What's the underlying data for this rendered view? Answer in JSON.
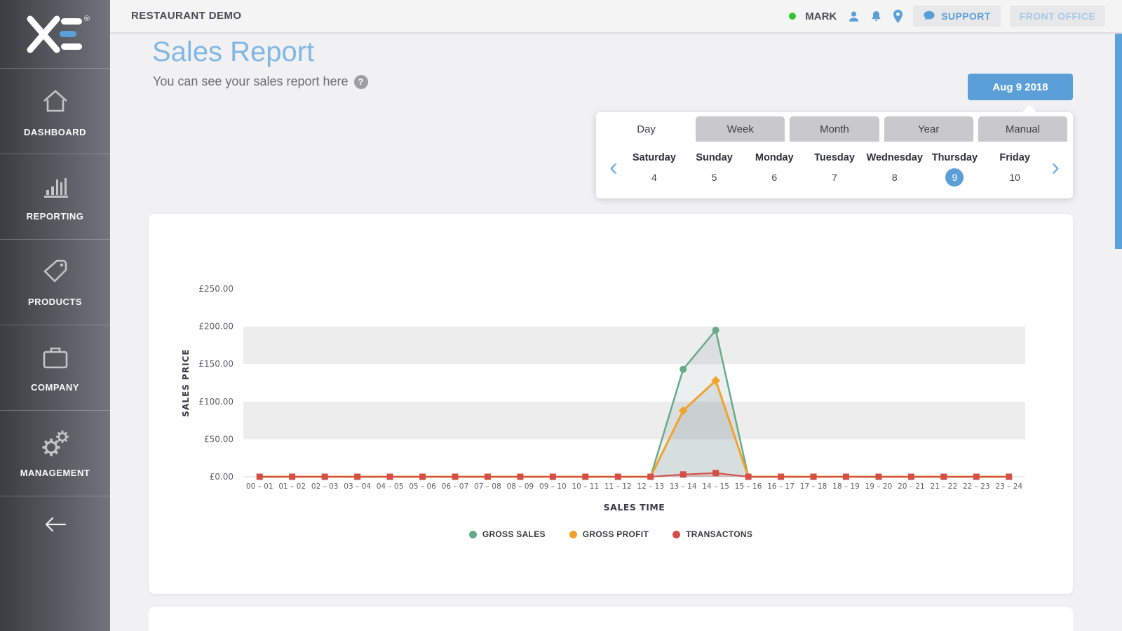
{
  "theme": {
    "accent_blue": "#5b9fd8",
    "title_blue": "#82b7e3",
    "muted_blue": "#a9c9e6",
    "status_green": "#2ec52e",
    "tab_gray": "#c9c9cb",
    "band_gray": "#ededee"
  },
  "sidebar": {
    "brand": "XE",
    "registered_mark": "®",
    "items": [
      {
        "label": "DASHBOARD",
        "icon": "home-icon"
      },
      {
        "label": "REPORTING",
        "icon": "bar-chart-icon"
      },
      {
        "label": "PRODUCTS",
        "icon": "tag-icon"
      },
      {
        "label": "COMPANY",
        "icon": "briefcase-icon"
      },
      {
        "label": "MANAGEMENT",
        "icon": "gears-icon"
      }
    ]
  },
  "topbar": {
    "brand": "RESTAURANT DEMO",
    "user_name": "MARK",
    "support_label": "SUPPORT",
    "front_office_label": "FRONT OFFICE"
  },
  "page": {
    "title": "Sales Report",
    "subtitle": "You can see your sales report here",
    "help_glyph": "?"
  },
  "date_picker": {
    "selected_date_label": "Aug 9 2018",
    "prev_glyph": "‹",
    "next_glyph": "›",
    "tabs": [
      {
        "label": "Day",
        "active": true
      },
      {
        "label": "Week",
        "active": false
      },
      {
        "label": "Month",
        "active": false
      },
      {
        "label": "Year",
        "active": false
      },
      {
        "label": "Manual",
        "active": false
      }
    ],
    "days": [
      {
        "name": "Saturday",
        "num": "4",
        "selected": false
      },
      {
        "name": "Sunday",
        "num": "5",
        "selected": false
      },
      {
        "name": "Monday",
        "num": "6",
        "selected": false
      },
      {
        "name": "Tuesday",
        "num": "7",
        "selected": false
      },
      {
        "name": "Wednesday",
        "num": "8",
        "selected": false
      },
      {
        "name": "Thursday",
        "num": "9",
        "selected": true
      },
      {
        "name": "Friday",
        "num": "10",
        "selected": false
      }
    ]
  },
  "chart_data": {
    "type": "area",
    "title": "",
    "xlabel": "SALES TIME",
    "ylabel": "SALES PRICE",
    "ylim": [
      0,
      250
    ],
    "ytick_step": 50,
    "ytick_labels": [
      "£0.00",
      "£50.00",
      "£100.00",
      "£150.00",
      "£200.00",
      "£250.00"
    ],
    "grid_bands": [
      [
        50,
        100
      ],
      [
        150,
        200
      ]
    ],
    "legend_position": "bottom",
    "categories": [
      "00 – 01",
      "01 – 02",
      "02 – 03",
      "03 – 04",
      "04 – 05",
      "05 – 06",
      "06 – 07",
      "07 – 08",
      "08 – 09",
      "09 – 10",
      "10 – 11",
      "11 – 12",
      "12 – 13",
      "13 – 14",
      "14 – 15",
      "15 – 16",
      "16 – 17",
      "17 – 18",
      "18 – 19",
      "19 – 20",
      "20 – 21",
      "21 – 22",
      "22 – 23",
      "23 – 24"
    ],
    "series": [
      {
        "name": "GROSS SALES",
        "color": "#67aa8a",
        "fill": "rgba(120,145,145,0.14)",
        "marker": "circle",
        "values": [
          0,
          0,
          0,
          0,
          0,
          0,
          0,
          0,
          0,
          0,
          0,
          0,
          0,
          143,
          195,
          0,
          0,
          0,
          0,
          0,
          0,
          0,
          0,
          0
        ]
      },
      {
        "name": "GROSS PROFIT",
        "color": "#f0a22c",
        "fill": "rgba(120,145,145,0.18)",
        "marker": "diamond",
        "values": [
          0,
          0,
          0,
          0,
          0,
          0,
          0,
          0,
          0,
          0,
          0,
          0,
          0,
          88,
          128,
          0,
          0,
          0,
          0,
          0,
          0,
          0,
          0,
          0
        ]
      },
      {
        "name": "TRANSACTONS",
        "color": "#d25046",
        "fill": "rgba(210,80,70,0.25)",
        "marker": "square",
        "values": [
          0,
          0,
          0,
          0,
          0,
          0,
          0,
          0,
          0,
          0,
          0,
          0,
          0,
          3,
          5,
          0,
          0,
          0,
          0,
          0,
          0,
          0,
          0,
          0
        ]
      }
    ]
  }
}
